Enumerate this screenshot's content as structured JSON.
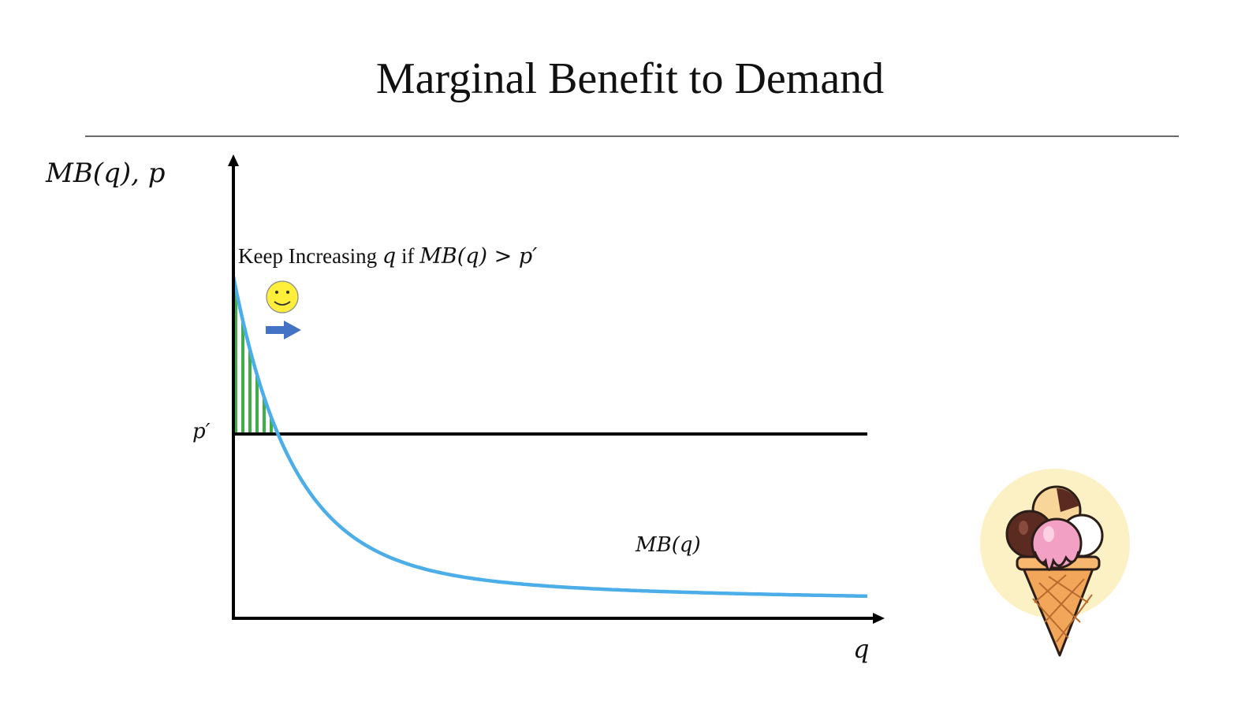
{
  "title": "Marginal Benefit to Demand",
  "axes": {
    "y_label": "MB(q), p",
    "x_label": "q"
  },
  "price_line_label": "p′",
  "curve_label": "MB(q)",
  "annotation": {
    "prefix": "Keep Increasing ",
    "var": "q",
    "mid": " if ",
    "condition": "MB(q) > p′"
  },
  "icons": [
    "smiley-icon",
    "right-arrow-icon",
    "ice-cream-cone-icon"
  ],
  "colors": {
    "curve": "#4baee8",
    "bars": "#3fae49",
    "arrow": "#4472c4",
    "smiley": "#ffef3a",
    "icecream_bg": "#fcf1c4"
  }
}
